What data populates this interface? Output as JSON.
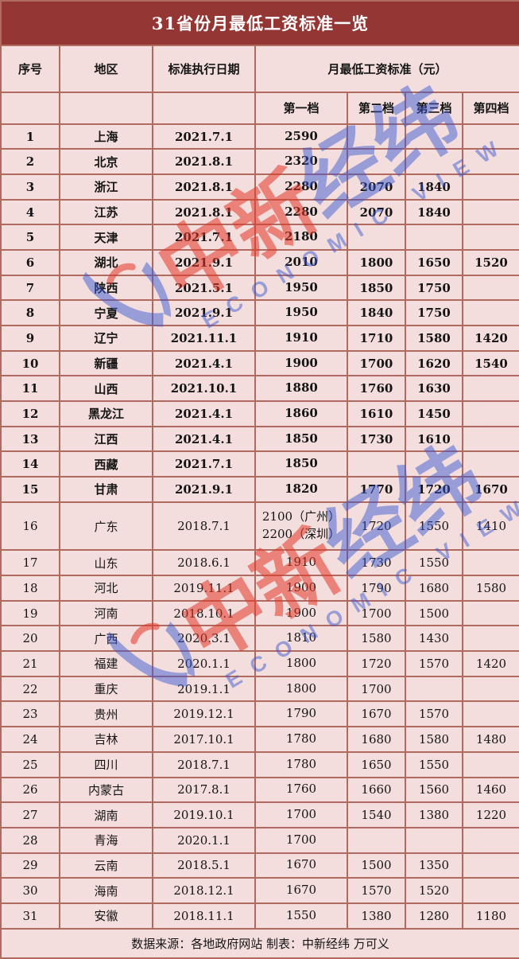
{
  "chart_data": {
    "type": "table",
    "title": "31省份月最低工资标准一览",
    "columns": {
      "index": "序号",
      "region": "地区",
      "date": "标准执行日期",
      "wage_group": "月最低工资标准（元）",
      "tiers": [
        "第一档",
        "第二档",
        "第三档",
        "第四档"
      ]
    },
    "rows": [
      {
        "no": "1",
        "region": "上海",
        "date": "2021.7.1",
        "t1": "2590",
        "t2": "",
        "t3": "",
        "t4": "",
        "bold": true
      },
      {
        "no": "2",
        "region": "北京",
        "date": "2021.8.1",
        "t1": "2320",
        "t2": "",
        "t3": "",
        "t4": "",
        "bold": true
      },
      {
        "no": "3",
        "region": "浙江",
        "date": "2021.8.1",
        "t1": "2280",
        "t2": "2070",
        "t3": "1840",
        "t4": "",
        "bold": true
      },
      {
        "no": "4",
        "region": "江苏",
        "date": "2021.8.1",
        "t1": "2280",
        "t2": "2070",
        "t3": "1840",
        "t4": "",
        "bold": true
      },
      {
        "no": "5",
        "region": "天津",
        "date": "2021.7.1",
        "t1": "2180",
        "t2": "",
        "t3": "",
        "t4": "",
        "bold": true
      },
      {
        "no": "6",
        "region": "湖北",
        "date": "2021.9.1",
        "t1": "2010",
        "t2": "1800",
        "t3": "1650",
        "t4": "1520",
        "bold": true
      },
      {
        "no": "7",
        "region": "陕西",
        "date": "2021.5.1",
        "t1": "1950",
        "t2": "1850",
        "t3": "1750",
        "t4": "",
        "bold": true
      },
      {
        "no": "8",
        "region": "宁夏",
        "date": "2021.9.1",
        "t1": "1950",
        "t2": "1840",
        "t3": "1750",
        "t4": "",
        "bold": true
      },
      {
        "no": "9",
        "region": "辽宁",
        "date": "2021.11.1",
        "t1": "1910",
        "t2": "1710",
        "t3": "1580",
        "t4": "1420",
        "bold": true
      },
      {
        "no": "10",
        "region": "新疆",
        "date": "2021.4.1",
        "t1": "1900",
        "t2": "1700",
        "t3": "1620",
        "t4": "1540",
        "bold": true
      },
      {
        "no": "11",
        "region": "山西",
        "date": "2021.10.1",
        "t1": "1880",
        "t2": "1760",
        "t3": "1630",
        "t4": "",
        "bold": true
      },
      {
        "no": "12",
        "region": "黑龙江",
        "date": "2021.4.1",
        "t1": "1860",
        "t2": "1610",
        "t3": "1450",
        "t4": "",
        "bold": true
      },
      {
        "no": "13",
        "region": "江西",
        "date": "2021.4.1",
        "t1": "1850",
        "t2": "1730",
        "t3": "1610",
        "t4": "",
        "bold": true
      },
      {
        "no": "14",
        "region": "西藏",
        "date": "2021.7.1",
        "t1": "1850",
        "t2": "",
        "t3": "",
        "t4": "",
        "bold": true
      },
      {
        "no": "15",
        "region": "甘肃",
        "date": "2021.9.1",
        "t1": "1820",
        "t2": "1770",
        "t3": "1720",
        "t4": "1670",
        "bold": true
      },
      {
        "no": "16",
        "region": "广东",
        "date": "2018.7.1",
        "t1": "2100（广州）\n2200（深圳）",
        "t2": "1720",
        "t3": "1550",
        "t4": "1410",
        "bold": false
      },
      {
        "no": "17",
        "region": "山东",
        "date": "2018.6.1",
        "t1": "1910",
        "t2": "1730",
        "t3": "1550",
        "t4": "",
        "bold": false
      },
      {
        "no": "18",
        "region": "河北",
        "date": "2019.11.1",
        "t1": "1900",
        "t2": "1790",
        "t3": "1680",
        "t4": "1580",
        "bold": false
      },
      {
        "no": "19",
        "region": "河南",
        "date": "2018.10.1",
        "t1": "1900",
        "t2": "1700",
        "t3": "1500",
        "t4": "",
        "bold": false
      },
      {
        "no": "20",
        "region": "广西",
        "date": "2020.3.1",
        "t1": "1810",
        "t2": "1580",
        "t3": "1430",
        "t4": "",
        "bold": false
      },
      {
        "no": "21",
        "region": "福建",
        "date": "2020.1.1",
        "t1": "1800",
        "t2": "1720",
        "t3": "1570",
        "t4": "1420",
        "bold": false
      },
      {
        "no": "22",
        "region": "重庆",
        "date": "2019.1.1",
        "t1": "1800",
        "t2": "1700",
        "t3": "",
        "t4": "",
        "bold": false
      },
      {
        "no": "23",
        "region": "贵州",
        "date": "2019.12.1",
        "t1": "1790",
        "t2": "1670",
        "t3": "1570",
        "t4": "",
        "bold": false
      },
      {
        "no": "24",
        "region": "吉林",
        "date": "2017.10.1",
        "t1": "1780",
        "t2": "1680",
        "t3": "1580",
        "t4": "1480",
        "bold": false
      },
      {
        "no": "25",
        "region": "四川",
        "date": "2018.7.1",
        "t1": "1780",
        "t2": "1650",
        "t3": "1550",
        "t4": "",
        "bold": false
      },
      {
        "no": "26",
        "region": "内蒙古",
        "date": "2017.8.1",
        "t1": "1760",
        "t2": "1660",
        "t3": "1560",
        "t4": "1460",
        "bold": false
      },
      {
        "no": "27",
        "region": "湖南",
        "date": "2019.10.1",
        "t1": "1700",
        "t2": "1540",
        "t3": "1380",
        "t4": "1220",
        "bold": false
      },
      {
        "no": "28",
        "region": "青海",
        "date": "2020.1.1",
        "t1": "1700",
        "t2": "",
        "t3": "",
        "t4": "",
        "bold": false
      },
      {
        "no": "29",
        "region": "云南",
        "date": "2018.5.1",
        "t1": "1670",
        "t2": "1500",
        "t3": "1350",
        "t4": "",
        "bold": false
      },
      {
        "no": "30",
        "region": "海南",
        "date": "2018.12.1",
        "t1": "1670",
        "t2": "1570",
        "t3": "1520",
        "t4": "",
        "bold": false
      },
      {
        "no": "31",
        "region": "安徽",
        "date": "2018.11.1",
        "t1": "1550",
        "t2": "1380",
        "t3": "1280",
        "t4": "1180",
        "bold": false
      }
    ],
    "footer": "数据来源：各地政府网站  制表：中新经纬 万可义",
    "layout_hints": {
      "grid": true,
      "bold_rows": "rows 1-15 (2021 adjustments)"
    }
  },
  "watermark": {
    "text_red": "中新",
    "text_blue": "经纬",
    "caption": "ECONOMIC VIEW"
  },
  "colors": {
    "title_bg": "#943634",
    "title_text": "#ffffff",
    "cell_bg": "#f3dedd",
    "border": "#b06a60",
    "body_text": "#141414",
    "watermark_red": "#e13728",
    "watermark_blue": "#3755d2"
  }
}
